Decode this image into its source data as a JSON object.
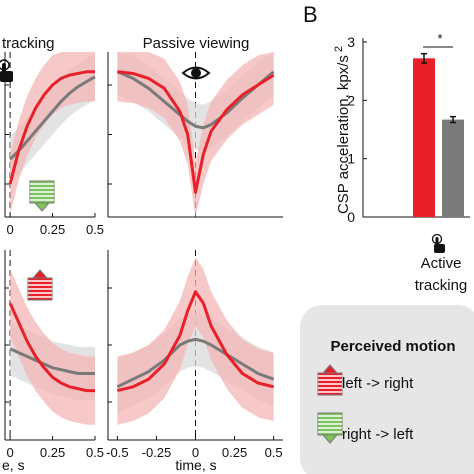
{
  "panel_letter": "B",
  "colors": {
    "red": "#e8202a",
    "gray": "#7a7a7a",
    "red_band": "#f4b6b6",
    "gray_band": "#d9d9d9",
    "green": "#7dc55e"
  },
  "labels": {
    "top_left_title": "tracking",
    "top_mid_title": "Passive viewing",
    "x_label_left": "e, s",
    "x_label_mid": "time, s",
    "bar_ylabel": "CSP acceleration, kpx/s",
    "bar_ylabel_sup": "2",
    "significance": "*",
    "bar_xlabel_line1": "Active",
    "bar_xlabel_line2": "tracking",
    "legend_title": "Perceived motion",
    "legend_right": "left -> right",
    "legend_left": "right -> left"
  },
  "icons": {
    "hand": "hand-pointer-icon",
    "eye": "eye-icon",
    "arrow_up": "striped-arrow-up-icon",
    "arrow_down": "striped-arrow-down-icon"
  },
  "chart_data": [
    {
      "type": "bar",
      "title": "",
      "xlabel": "Active tracking",
      "ylabel": "CSP acceleration, kpx/s 2",
      "ylim": [
        0,
        3
      ],
      "yticks": [
        "0",
        "1",
        "2",
        "3"
      ],
      "categories": [
        "left -> right",
        "right -> left"
      ],
      "values": [
        2.72,
        1.67
      ],
      "errors": [
        0.08,
        0.05
      ],
      "significance": "*"
    },
    {
      "type": "line",
      "title": "tracking",
      "xlabel": "e, s",
      "xticks": [
        "0",
        "0.25",
        "0.5"
      ],
      "x": [
        0,
        0.05,
        0.1,
        0.15,
        0.2,
        0.25,
        0.3,
        0.35,
        0.4,
        0.45,
        0.5
      ],
      "series": [
        {
          "values": [
            0.2,
            0.4,
            0.55,
            0.66,
            0.74,
            0.8,
            0.84,
            0.86,
            0.87,
            0.88,
            0.88
          ]
        },
        {
          "values": [
            0.35,
            0.4,
            0.46,
            0.52,
            0.58,
            0.64,
            0.7,
            0.75,
            0.79,
            0.82,
            0.85
          ]
        }
      ]
    },
    {
      "type": "line",
      "title": "Passive viewing",
      "xlabel": "",
      "xticks": [],
      "x": [
        -0.5,
        -0.4,
        -0.3,
        -0.2,
        -0.1,
        -0.05,
        0,
        0.05,
        0.1,
        0.2,
        0.3,
        0.4,
        0.5
      ],
      "series": [
        {
          "values": [
            0.88,
            0.87,
            0.84,
            0.78,
            0.64,
            0.5,
            0.15,
            0.38,
            0.52,
            0.65,
            0.74,
            0.8,
            0.86
          ]
        },
        {
          "values": [
            0.88,
            0.84,
            0.78,
            0.7,
            0.62,
            0.58,
            0.55,
            0.54,
            0.56,
            0.63,
            0.72,
            0.8,
            0.88
          ]
        }
      ]
    },
    {
      "type": "line",
      "title": "",
      "xlabel": "e, s",
      "xticks": [
        "0",
        "0.25",
        "0.5"
      ],
      "x": [
        0,
        0.05,
        0.1,
        0.15,
        0.2,
        0.25,
        0.3,
        0.35,
        0.4,
        0.45,
        0.5
      ],
      "series": [
        {
          "values": [
            0.72,
            0.62,
            0.52,
            0.44,
            0.38,
            0.33,
            0.3,
            0.28,
            0.27,
            0.26,
            0.26
          ]
        },
        {
          "values": [
            0.48,
            0.46,
            0.44,
            0.42,
            0.4,
            0.38,
            0.37,
            0.36,
            0.35,
            0.35,
            0.35
          ]
        }
      ]
    },
    {
      "type": "line",
      "title": "",
      "xlabel": "time, s",
      "xticks": [
        "-0.5",
        "-0.25",
        "0",
        "0.25",
        "0.5"
      ],
      "x": [
        -0.5,
        -0.4,
        -0.3,
        -0.2,
        -0.1,
        -0.05,
        0,
        0.05,
        0.1,
        0.2,
        0.3,
        0.4,
        0.5
      ],
      "series": [
        {
          "values": [
            0.26,
            0.28,
            0.32,
            0.4,
            0.55,
            0.68,
            0.78,
            0.72,
            0.6,
            0.45,
            0.35,
            0.3,
            0.28
          ]
        },
        {
          "values": [
            0.28,
            0.32,
            0.36,
            0.42,
            0.5,
            0.52,
            0.53,
            0.52,
            0.5,
            0.45,
            0.4,
            0.35,
            0.32
          ]
        }
      ]
    }
  ]
}
